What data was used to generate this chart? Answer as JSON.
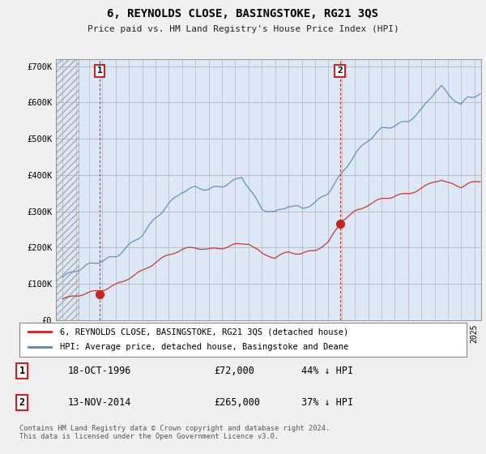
{
  "title": "6, REYNOLDS CLOSE, BASINGSTOKE, RG21 3QS",
  "subtitle": "Price paid vs. HM Land Registry's House Price Index (HPI)",
  "ylim": [
    0,
    720000
  ],
  "yticks": [
    0,
    100000,
    200000,
    300000,
    400000,
    500000,
    600000,
    700000
  ],
  "ytick_labels": [
    "£0",
    "£100K",
    "£200K",
    "£300K",
    "£400K",
    "£500K",
    "£600K",
    "£700K"
  ],
  "bg_color": "#f0f0f0",
  "plot_bg_color": "#dce8f5",
  "hpi_color": "#5588bb",
  "price_color": "#cc2222",
  "vline_color": "#cc3333",
  "purchase1_year": 1996.8,
  "purchase1_price": 72000,
  "purchase2_year": 2014.87,
  "purchase2_price": 265000,
  "legend_label1": "6, REYNOLDS CLOSE, BASINGSTOKE, RG21 3QS (detached house)",
  "legend_label2": "HPI: Average price, detached house, Basingstoke and Deane",
  "table_row1": [
    "1",
    "18-OCT-1996",
    "£72,000",
    "44% ↓ HPI"
  ],
  "table_row2": [
    "2",
    "13-NOV-2014",
    "£265,000",
    "37% ↓ HPI"
  ],
  "footer": "Contains HM Land Registry data © Crown copyright and database right 2024.\nThis data is licensed under the Open Government Licence v3.0.",
  "xlim_start": 1993.5,
  "xlim_end": 2025.5,
  "hatch_end": 1995.2
}
